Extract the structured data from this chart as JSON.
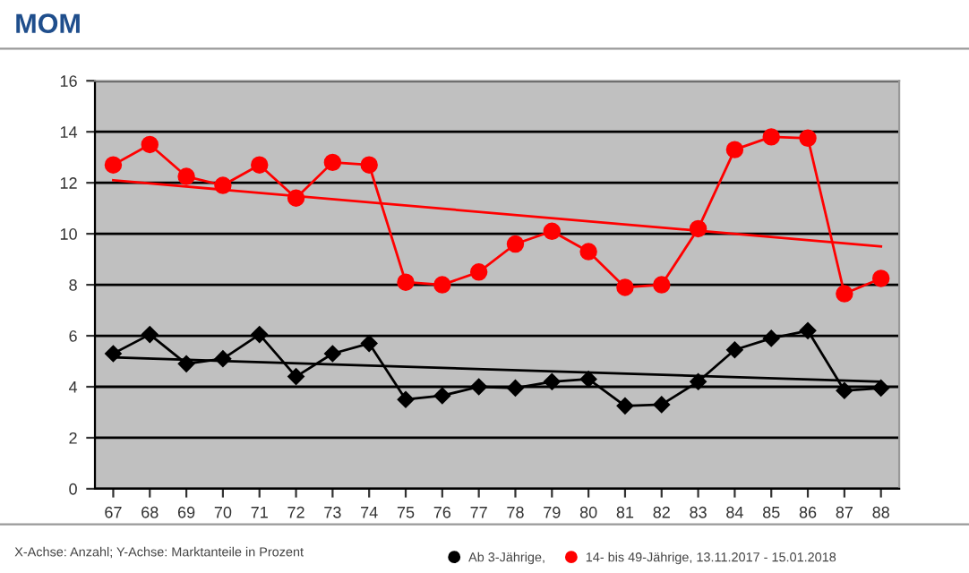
{
  "chart_data": {
    "type": "line",
    "title": "MOM",
    "categories": [
      "67",
      "68",
      "69",
      "70",
      "71",
      "72",
      "73",
      "74",
      "75",
      "76",
      "77",
      "78",
      "79",
      "80",
      "81",
      "82",
      "83",
      "84",
      "85",
      "86",
      "87",
      "88"
    ],
    "series": [
      {
        "name": "Ab 3-Jährige,",
        "color": "#000000",
        "marker": "diamond",
        "values": [
          5.3,
          6.05,
          4.9,
          5.1,
          6.05,
          4.4,
          5.3,
          5.7,
          3.5,
          3.65,
          4.0,
          3.95,
          4.2,
          4.3,
          3.25,
          3.3,
          4.2,
          5.45,
          5.9,
          6.2,
          3.85,
          3.95
        ]
      },
      {
        "name": "14- bis 49-Jährige, 13.11.2017 - 15.01.2018",
        "color": "#ff0000",
        "marker": "circle",
        "values": [
          12.7,
          13.5,
          12.25,
          11.9,
          12.7,
          11.4,
          12.8,
          12.7,
          8.1,
          8.0,
          8.5,
          9.6,
          10.1,
          9.3,
          7.9,
          8.0,
          10.2,
          13.3,
          13.8,
          13.75,
          7.65,
          8.25
        ]
      },
      {
        "type": "line",
        "color": "#000000",
        "marker": "none",
        "x": [
          "67",
          "88"
        ],
        "values": [
          5.15,
          4.2
        ]
      },
      {
        "type": "line",
        "color": "#ff0000",
        "marker": "none",
        "x": [
          "67",
          "88"
        ],
        "values": [
          12.1,
          9.5
        ]
      }
    ],
    "ylim": [
      0,
      16
    ],
    "yticks": [
      0,
      2,
      4,
      6,
      8,
      10,
      12,
      14,
      16
    ],
    "grid": "y",
    "legend": "bottom",
    "annotations": [
      "X-Achse: Anzahl; Y-Achse: Marktanteile in Prozent"
    ]
  }
}
